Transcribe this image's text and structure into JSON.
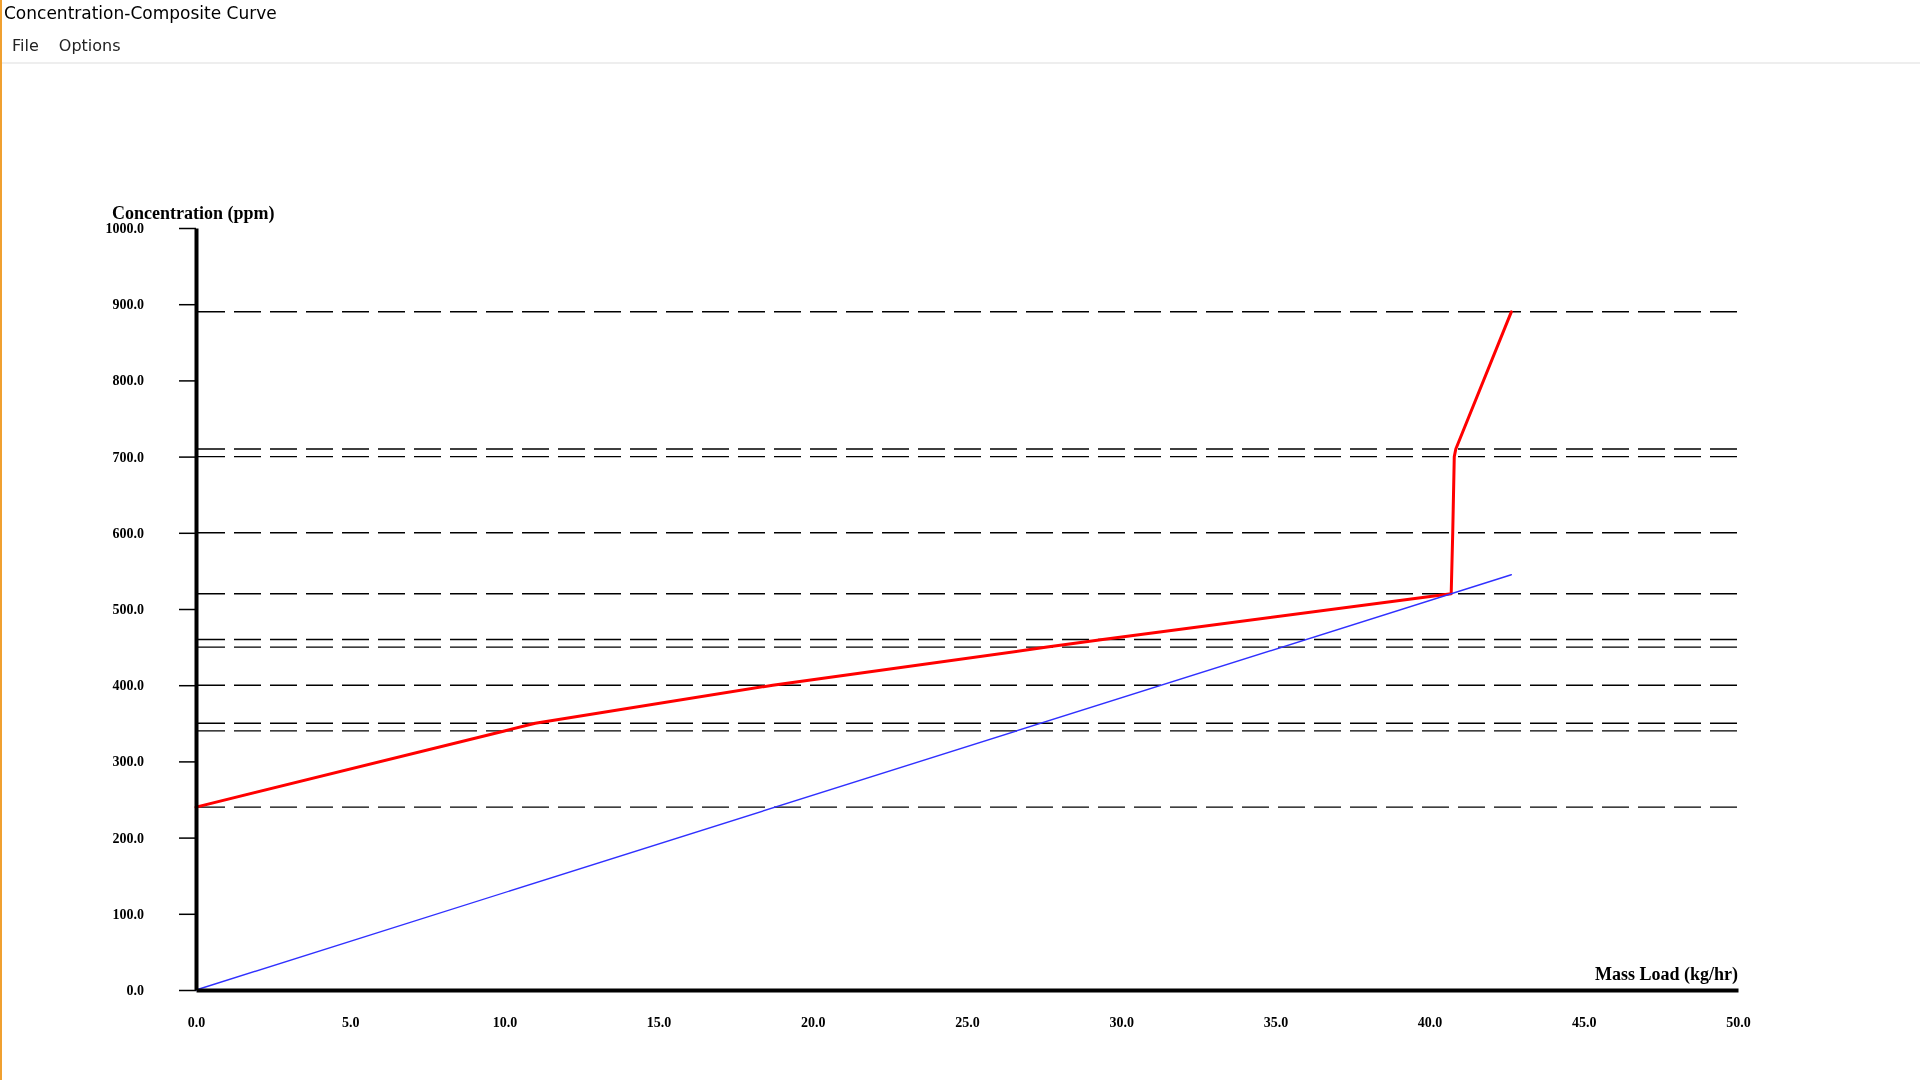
{
  "chart_data": {
    "type": "line",
    "title": "Concentration-Composite Curve",
    "annotations": [
      "File",
      "Options"
    ],
    "xlabel": "Mass Load (kg/hr)",
    "ylabel": "Concentration (ppm)",
    "xlim": [
      0,
      50
    ],
    "ylim": [
      0,
      1000
    ],
    "xticks": [
      {
        "value": 0,
        "label": "0.0"
      },
      {
        "value": 5,
        "label": "5.0"
      },
      {
        "value": 10,
        "label": "10.0"
      },
      {
        "value": 15,
        "label": "15.0"
      },
      {
        "value": 20,
        "label": "20.0"
      },
      {
        "value": 25,
        "label": "25.0"
      },
      {
        "value": 30,
        "label": "30.0"
      },
      {
        "value": 35,
        "label": "35.0"
      },
      {
        "value": 40,
        "label": "40.0"
      },
      {
        "value": 45,
        "label": "45.0"
      },
      {
        "value": 50,
        "label": "50.0"
      }
    ],
    "yticks": [
      {
        "value": 0,
        "label": "0.0"
      },
      {
        "value": 100,
        "label": "100.0"
      },
      {
        "value": 200,
        "label": "200.0"
      },
      {
        "value": 300,
        "label": "300.0"
      },
      {
        "value": 400,
        "label": "400.0"
      },
      {
        "value": 500,
        "label": "500.0"
      },
      {
        "value": 600,
        "label": "600.0"
      },
      {
        "value": 700,
        "label": "700.0"
      },
      {
        "value": 800,
        "label": "800.0"
      },
      {
        "value": 900,
        "label": "900.0"
      },
      {
        "value": 1000,
        "label": "1000.0"
      }
    ],
    "series": [
      {
        "color": "#ff0000",
        "x": [
          0,
          10.0,
          11.0,
          18.7,
          27.6,
          29.4,
          40.7,
          40.75,
          40.8,
          40.85,
          42.65
        ],
        "values": [
          240,
          340,
          350,
          400,
          450,
          460,
          520,
          600,
          700,
          710,
          890
        ]
      },
      {
        "color": "#3030ff",
        "x": [
          0,
          42.65
        ],
        "values": [
          0,
          545
        ]
      }
    ],
    "ref_lines": [
      {
        "axis": "y",
        "value": 240,
        "color": "#000000",
        "line_style": "dashed"
      },
      {
        "axis": "y",
        "value": 340,
        "color": "#000000",
        "line_style": "dashed"
      },
      {
        "axis": "y",
        "value": 350,
        "color": "#000000",
        "line_style": "dashed"
      },
      {
        "axis": "y",
        "value": 400,
        "color": "#000000",
        "line_style": "dashed"
      },
      {
        "axis": "y",
        "value": 450,
        "color": "#000000",
        "line_style": "dashed"
      },
      {
        "axis": "y",
        "value": 460,
        "color": "#000000",
        "line_style": "dashed"
      },
      {
        "axis": "y",
        "value": 520,
        "color": "#000000",
        "line_style": "dashed"
      },
      {
        "axis": "y",
        "value": 600,
        "color": "#000000",
        "line_style": "dashed"
      },
      {
        "axis": "y",
        "value": 700,
        "color": "#000000",
        "line_style": "dashed"
      },
      {
        "axis": "y",
        "value": 710,
        "color": "#000000",
        "line_style": "dashed"
      },
      {
        "axis": "y",
        "value": 890,
        "color": "#000000",
        "line_style": "dashed"
      }
    ]
  }
}
